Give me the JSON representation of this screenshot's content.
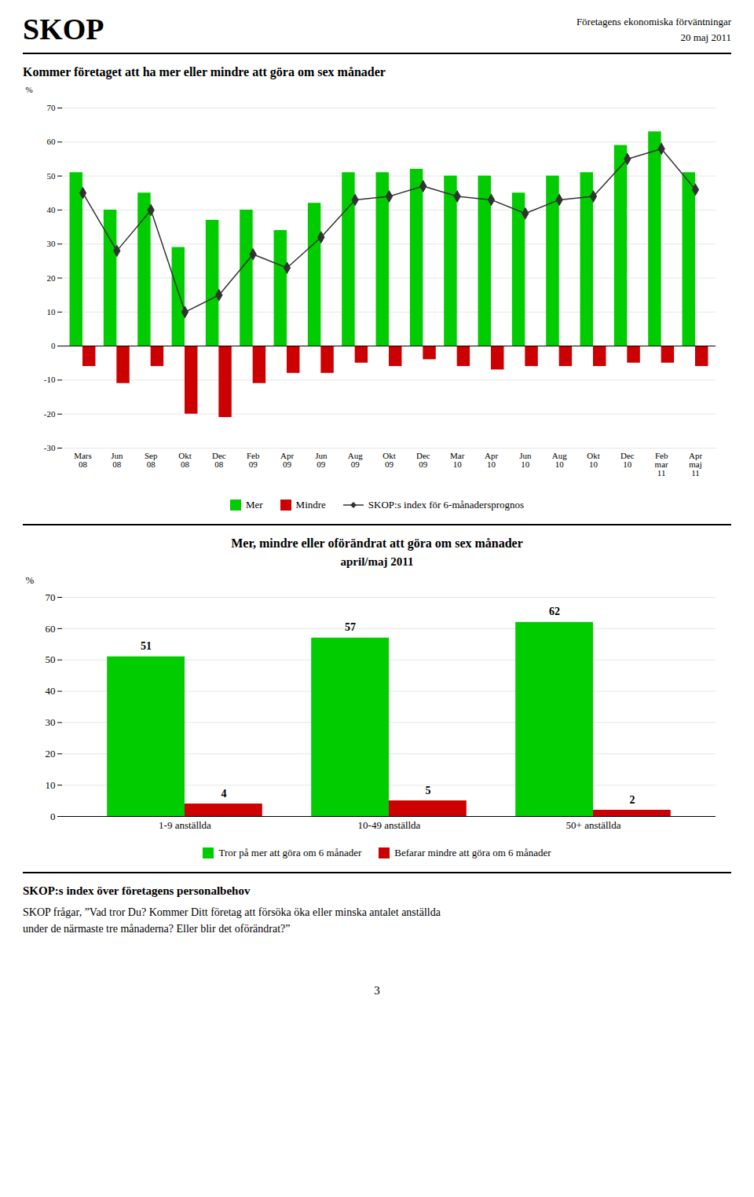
{
  "header": [
    "SKOP",
    "Företagens ekonomiska förväntningar",
    "20 maj 2011"
  ],
  "chart_data": [
    {
      "type": "bar",
      "title": "Kommer företaget att ha mer eller mindre att göra om sex månader",
      "ylabel": "%",
      "categories": [
        "Mars\n08",
        "Jun\n08",
        "Sep\n08",
        "Okt\n08",
        "Dec\n08",
        "Feb\n09",
        "Apr\n09",
        "Jun\n09",
        "Aug\n09",
        "Okt\n09",
        "Dec\n09",
        "Mar\n10",
        "Apr\n10",
        "Jun\n10",
        "Aug\n10",
        "Okt\n10",
        "Dec\n10",
        "Feb\nmar\n11",
        "Apr\nmaj\n11"
      ],
      "series": [
        {
          "name": "Mer",
          "color": "#00cc00",
          "values": [
            51,
            40,
            45,
            29,
            37,
            40,
            34,
            42,
            51,
            51,
            52,
            50,
            50,
            45,
            50,
            51,
            59,
            63,
            51
          ]
        },
        {
          "name": "Mindre",
          "color": "#cc0000",
          "values": [
            -6,
            -11,
            -6,
            -20,
            -21,
            -11,
            -8,
            -8,
            -5,
            -6,
            -4,
            -6,
            -7,
            -6,
            -6,
            -6,
            -5,
            -5,
            -6
          ]
        },
        {
          "name": "SKOP:s index för 6-månadersprognos",
          "type": "line",
          "color": "#333333",
          "marker": "diamond",
          "values": [
            45,
            28,
            40,
            10,
            15,
            27,
            23,
            32,
            43,
            44,
            47,
            44,
            43,
            39,
            43,
            44,
            55,
            58,
            46
          ]
        }
      ],
      "ylim": [
        -30,
        70
      ],
      "yticks": [
        -30,
        -20,
        -10,
        0,
        10,
        20,
        30,
        40,
        50,
        60,
        70
      ],
      "grid": true,
      "legend": "bottom"
    },
    {
      "type": "bar",
      "title": "Mer, mindre eller oförändrat att göra om sex månader",
      "subtitle": "april/maj 2011",
      "ylabel": "%",
      "categories": [
        "1-9 anställda",
        "10-49 anställda",
        "50+ anställda"
      ],
      "series": [
        {
          "name": "Tror på mer att göra om 6 månader",
          "color": "#00cc00",
          "values": [
            51,
            57,
            62
          ]
        },
        {
          "name": "Befarar mindre att göra om 6 månader",
          "color": "#cc0000",
          "values": [
            4,
            5,
            2
          ]
        }
      ],
      "ylim": [
        0,
        70
      ],
      "yticks": [
        0,
        10,
        20,
        30,
        40,
        50,
        60,
        70
      ],
      "grid": true,
      "legend": "bottom",
      "data_labels": true
    }
  ],
  "footer": [
    "SKOP:s index över företagens personalbehov",
    "SKOP frågar, ”Vad tror Du? Kommer Ditt företag att försöka öka eller minska antalet anställda",
    "under de närmaste tre månaderna? Eller blir det oförändrat?”"
  ],
  "page_number": "3"
}
